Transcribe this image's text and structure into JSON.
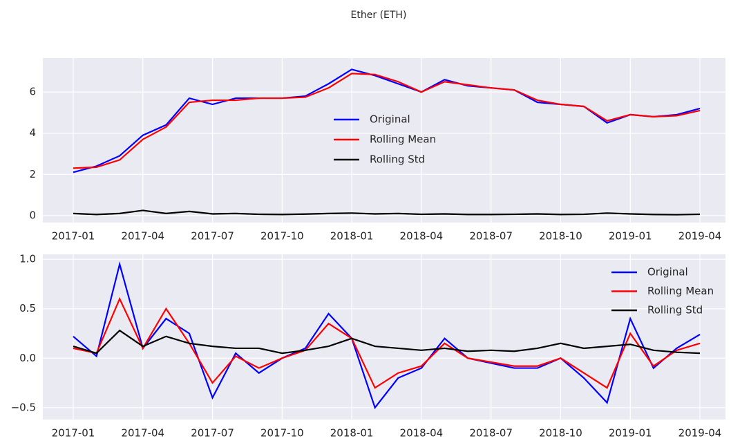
{
  "title": "Ether (ETH)",
  "chart_data": [
    {
      "type": "line",
      "x": [
        "2017-01",
        "2017-02",
        "2017-03",
        "2017-04",
        "2017-05",
        "2017-06",
        "2017-07",
        "2017-08",
        "2017-09",
        "2017-10",
        "2017-11",
        "2017-12",
        "2018-01",
        "2018-02",
        "2018-03",
        "2018-04",
        "2018-05",
        "2018-06",
        "2018-07",
        "2018-08",
        "2018-09",
        "2018-10",
        "2018-11",
        "2018-12",
        "2019-01",
        "2019-02",
        "2019-03",
        "2019-04"
      ],
      "xticks": [
        "2017-01",
        "2017-04",
        "2017-07",
        "2017-10",
        "2018-01",
        "2018-04",
        "2018-07",
        "2018-10",
        "2019-01",
        "2019-04"
      ],
      "ylim": [
        -0.34,
        7.65
      ],
      "yticks": [
        0,
        2,
        4,
        6
      ],
      "grid": true,
      "legend": "center",
      "series": [
        {
          "name": "Original",
          "color": "#0000ff",
          "values": [
            2.1,
            2.4,
            2.9,
            3.9,
            4.4,
            5.7,
            5.4,
            5.7,
            5.7,
            5.7,
            5.8,
            6.4,
            7.1,
            6.8,
            6.4,
            6.0,
            6.6,
            6.3,
            6.2,
            6.1,
            5.5,
            5.4,
            5.3,
            4.5,
            4.9,
            4.8,
            4.9,
            5.2
          ]
        },
        {
          "name": "Rolling Mean",
          "color": "#ff0000",
          "values": [
            2.3,
            2.35,
            2.7,
            3.7,
            4.3,
            5.5,
            5.6,
            5.6,
            5.7,
            5.7,
            5.75,
            6.2,
            6.9,
            6.85,
            6.5,
            6.0,
            6.5,
            6.35,
            6.2,
            6.1,
            5.6,
            5.4,
            5.3,
            4.6,
            4.9,
            4.8,
            4.85,
            5.1
          ]
        },
        {
          "name": "Rolling Std",
          "color": "#000000",
          "values": [
            0.1,
            0.05,
            0.1,
            0.25,
            0.1,
            0.2,
            0.08,
            0.1,
            0.06,
            0.05,
            0.07,
            0.1,
            0.12,
            0.08,
            0.1,
            0.06,
            0.08,
            0.05,
            0.05,
            0.06,
            0.08,
            0.05,
            0.06,
            0.12,
            0.08,
            0.05,
            0.04,
            0.06
          ]
        }
      ]
    },
    {
      "type": "line",
      "x": [
        "2017-01",
        "2017-02",
        "2017-03",
        "2017-04",
        "2017-05",
        "2017-06",
        "2017-07",
        "2017-08",
        "2017-09",
        "2017-10",
        "2017-11",
        "2017-12",
        "2018-01",
        "2018-02",
        "2018-03",
        "2018-04",
        "2018-05",
        "2018-06",
        "2018-07",
        "2018-08",
        "2018-09",
        "2018-10",
        "2018-11",
        "2018-12",
        "2019-01",
        "2019-02",
        "2019-03",
        "2019-04"
      ],
      "xticks": [
        "2017-01",
        "2017-04",
        "2017-07",
        "2017-10",
        "2018-01",
        "2018-04",
        "2018-07",
        "2018-10",
        "2019-01",
        "2019-04"
      ],
      "ylim": [
        -0.62,
        1.05
      ],
      "yticks": [
        {
          "value": -0.5,
          "label": "−0.5"
        },
        {
          "value": 0,
          "label": "0.0"
        },
        {
          "value": 0.5,
          "label": "0.5"
        },
        {
          "value": 1,
          "label": "1.0"
        }
      ],
      "grid": true,
      "legend": "upper right",
      "series": [
        {
          "name": "Original",
          "color": "#0000ff",
          "values": [
            0.22,
            0.02,
            0.95,
            0.1,
            0.4,
            0.25,
            -0.4,
            0.05,
            -0.15,
            0.0,
            0.1,
            0.45,
            0.2,
            -0.5,
            -0.2,
            -0.1,
            0.2,
            0.0,
            -0.05,
            -0.1,
            -0.1,
            0.0,
            -0.2,
            -0.45,
            0.4,
            -0.1,
            0.1,
            0.24
          ]
        },
        {
          "name": "Rolling Mean",
          "color": "#ff0000",
          "values": [
            0.1,
            0.05,
            0.6,
            0.1,
            0.5,
            0.15,
            -0.25,
            0.02,
            -0.1,
            0.0,
            0.08,
            0.35,
            0.2,
            -0.3,
            -0.15,
            -0.08,
            0.15,
            0.0,
            -0.04,
            -0.08,
            -0.08,
            0.0,
            -0.15,
            -0.3,
            0.25,
            -0.08,
            0.08,
            0.15
          ]
        },
        {
          "name": "Rolling Std",
          "color": "#000000",
          "values": [
            0.12,
            0.05,
            0.28,
            0.12,
            0.22,
            0.15,
            0.12,
            0.1,
            0.1,
            0.05,
            0.08,
            0.12,
            0.2,
            0.12,
            0.1,
            0.08,
            0.1,
            0.07,
            0.08,
            0.07,
            0.1,
            0.15,
            0.1,
            0.12,
            0.14,
            0.08,
            0.06,
            0.05
          ]
        }
      ]
    }
  ]
}
